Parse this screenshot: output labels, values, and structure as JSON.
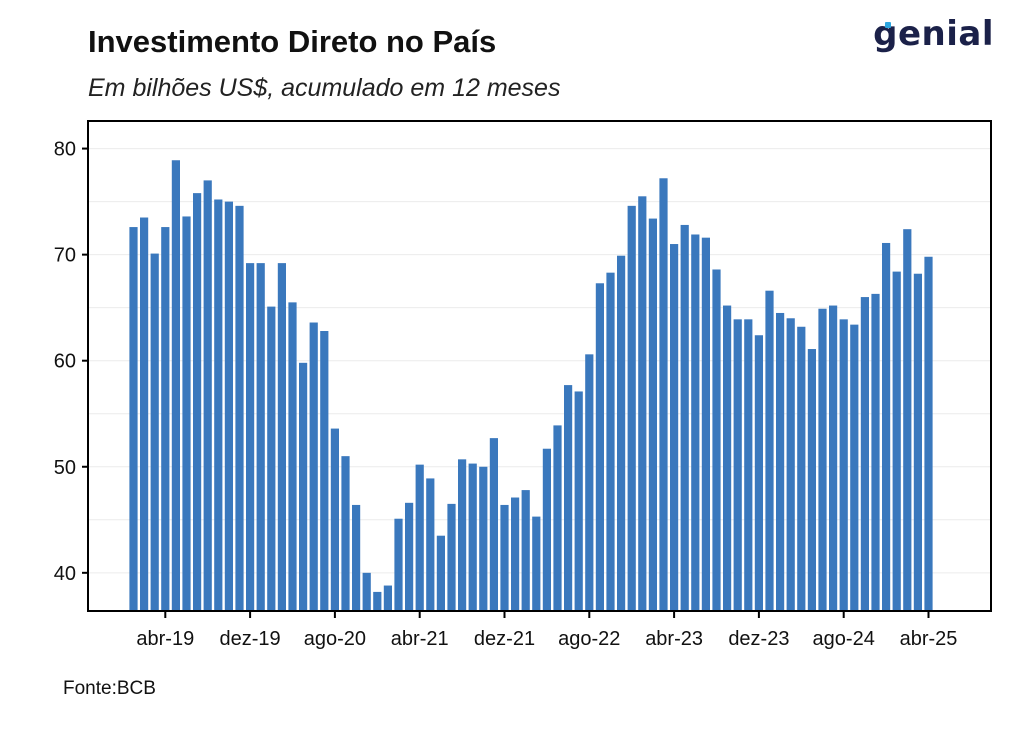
{
  "header": {
    "title": "Investimento Direto no País",
    "subtitle": "Em bilhões US$, acumulado em 12 meses",
    "logo_text": "genial"
  },
  "footer": {
    "source": "Fonte:BCB"
  },
  "colors": {
    "bar": "#3a78bd",
    "logo": "#1b2149",
    "logo_accent": "#2da6e0"
  },
  "chart_data": {
    "type": "bar",
    "title": "Investimento Direto no País",
    "subtitle": "Em bilhões US$, acumulado em 12 meses",
    "xlabel": "",
    "ylabel": "",
    "ylim": [
      36.4,
      82.6
    ],
    "yticks": [
      40,
      50,
      60,
      70,
      80
    ],
    "grid": true,
    "legend": "none",
    "x_tick_labels": [
      {
        "index": 3,
        "label": "abr-19"
      },
      {
        "index": 11,
        "label": "dez-19"
      },
      {
        "index": 19,
        "label": "ago-20"
      },
      {
        "index": 27,
        "label": "abr-21"
      },
      {
        "index": 35,
        "label": "dez-21"
      },
      {
        "index": 43,
        "label": "ago-22"
      },
      {
        "index": 51,
        "label": "abr-23"
      },
      {
        "index": 59,
        "label": "dez-23"
      },
      {
        "index": 67,
        "label": "ago-24"
      },
      {
        "index": 75,
        "label": "abr-25"
      }
    ],
    "values": [
      72.6,
      73.5,
      70.1,
      72.6,
      78.9,
      73.6,
      75.8,
      77.0,
      75.2,
      75.0,
      74.6,
      69.2,
      69.2,
      65.1,
      69.2,
      65.5,
      59.8,
      63.6,
      62.8,
      53.6,
      51.0,
      46.4,
      40.0,
      38.2,
      38.8,
      45.1,
      46.6,
      50.2,
      48.9,
      43.5,
      46.5,
      50.7,
      50.3,
      50.0,
      52.7,
      46.4,
      47.1,
      47.8,
      45.3,
      51.7,
      53.9,
      57.7,
      57.1,
      60.6,
      67.3,
      68.3,
      69.9,
      74.6,
      75.5,
      73.4,
      77.2,
      71.0,
      72.8,
      71.9,
      71.6,
      68.6,
      65.2,
      63.9,
      63.9,
      62.4,
      66.6,
      64.5,
      64.0,
      63.2,
      61.1,
      64.9,
      65.2,
      63.9,
      63.4,
      66.0,
      66.3,
      71.1,
      68.4,
      72.4,
      68.2,
      69.8
    ]
  }
}
